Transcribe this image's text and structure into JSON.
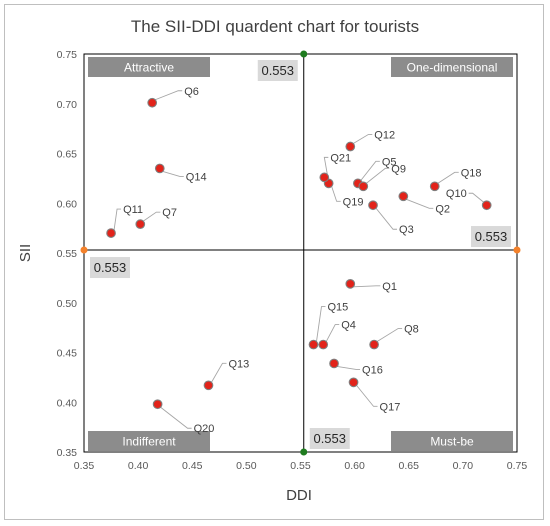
{
  "chart_data": {
    "type": "scatter",
    "title": "The SII-DDI quardent chart for tourists",
    "xlabel": "DDI",
    "ylabel": "SII",
    "xlim": [
      0.35,
      0.75
    ],
    "ylim": [
      0.35,
      0.75
    ],
    "xticks": [
      "0.35",
      "0.40",
      "0.45",
      "0.50",
      "0.55",
      "0.60",
      "0.65",
      "0.70",
      "0.75"
    ],
    "yticks": [
      "0.35",
      "0.40",
      "0.45",
      "0.50",
      "0.55",
      "0.60",
      "0.65",
      "0.70",
      "0.75"
    ],
    "threshold": {
      "x": 0.553,
      "y": 0.553,
      "label": "0.553"
    },
    "quadrants": {
      "top_left": "Attractive",
      "top_right": "One-dimensional",
      "bottom_left": "Indifferent",
      "bottom_right": "Must-be"
    },
    "points": [
      {
        "label": "Q1",
        "x": 0.596,
        "y": 0.519
      },
      {
        "label": "Q2",
        "x": 0.645,
        "y": 0.607
      },
      {
        "label": "Q3",
        "x": 0.617,
        "y": 0.598
      },
      {
        "label": "Q4",
        "x": 0.571,
        "y": 0.458
      },
      {
        "label": "Q5",
        "x": 0.603,
        "y": 0.62
      },
      {
        "label": "Q6",
        "x": 0.413,
        "y": 0.701
      },
      {
        "label": "Q7",
        "x": 0.402,
        "y": 0.579
      },
      {
        "label": "Q8",
        "x": 0.618,
        "y": 0.458
      },
      {
        "label": "Q9",
        "x": 0.608,
        "y": 0.617
      },
      {
        "label": "Q10",
        "x": 0.722,
        "y": 0.598
      },
      {
        "label": "Q11",
        "x": 0.375,
        "y": 0.57
      },
      {
        "label": "Q12",
        "x": 0.596,
        "y": 0.657
      },
      {
        "label": "Q13",
        "x": 0.465,
        "y": 0.417
      },
      {
        "label": "Q14",
        "x": 0.42,
        "y": 0.635
      },
      {
        "label": "Q15",
        "x": 0.562,
        "y": 0.458
      },
      {
        "label": "Q16",
        "x": 0.581,
        "y": 0.439
      },
      {
        "label": "Q17",
        "x": 0.599,
        "y": 0.42
      },
      {
        "label": "Q18",
        "x": 0.674,
        "y": 0.617
      },
      {
        "label": "Q19",
        "x": 0.576,
        "y": 0.62
      },
      {
        "label": "Q20",
        "x": 0.418,
        "y": 0.398
      },
      {
        "label": "Q21",
        "x": 0.572,
        "y": 0.626
      }
    ],
    "grid": false,
    "legend": "none"
  },
  "colors": {
    "point_fill": "#e2231a",
    "point_stroke": "#7f7f7f",
    "quadrant_box": "#8c8c8c",
    "value_box": "#d9d9d9",
    "threshold_marker_x": "#1e7b1e",
    "threshold_marker_y": "#f4812a"
  }
}
